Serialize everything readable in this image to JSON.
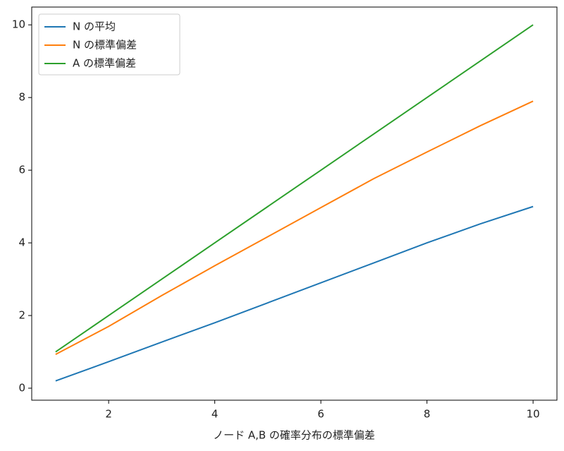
{
  "chart_data": {
    "type": "line",
    "x_label": "ノード A,B の確率分布の標準偏差",
    "x": [
      1,
      2,
      3,
      4,
      5,
      6,
      7,
      8,
      9,
      10
    ],
    "series": [
      {
        "name": "N の平均",
        "color": "#1f77b4",
        "values": [
          0.2,
          0.73,
          1.27,
          1.8,
          2.35,
          2.9,
          3.45,
          4.0,
          4.52,
          5.0
        ]
      },
      {
        "name": "N の標準偏差",
        "color": "#ff7f0e",
        "values": [
          0.93,
          1.7,
          2.55,
          3.37,
          4.17,
          4.97,
          5.77,
          6.5,
          7.22,
          7.9
        ]
      },
      {
        "name": "A の標準偏差",
        "color": "#2ca02c",
        "values": [
          1,
          2,
          3,
          4,
          5,
          6,
          7,
          8,
          9,
          10
        ]
      }
    ],
    "xlim": [
      0.55,
      10.45
    ],
    "ylim": [
      -0.33,
      10.49
    ],
    "xticks": [
      2,
      4,
      6,
      8,
      10
    ],
    "yticks": [
      0,
      2,
      4,
      6,
      8,
      10
    ],
    "legend": "upper left"
  }
}
